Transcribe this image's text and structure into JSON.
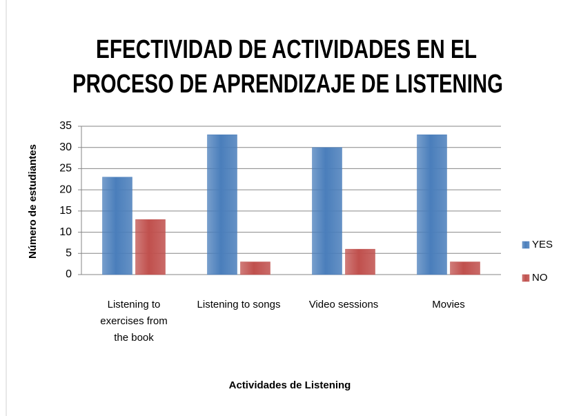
{
  "chart_data": {
    "type": "bar",
    "title": [
      "EFECTIVIDAD DE ACTIVIDADES EN EL",
      "PROCESO DE APRENDIZAJE DE LISTENING"
    ],
    "x_label": "Actividades de Listening",
    "y_label": "Número de estudiantes",
    "categories": [
      "Listening to exercises from the book",
      "Listening to songs",
      "Video sessions",
      "Movies"
    ],
    "series": [
      {
        "name": "YES",
        "color": "#4a7ebb",
        "values": [
          23,
          33,
          30,
          33
        ]
      },
      {
        "name": "NO",
        "color": "#c0504d",
        "values": [
          13,
          3,
          6,
          3
        ]
      }
    ],
    "ylim": [
      0,
      35
    ],
    "yticks": [
      0,
      5,
      10,
      15,
      20,
      25,
      30,
      35
    ],
    "grid": true,
    "legend": "right"
  }
}
